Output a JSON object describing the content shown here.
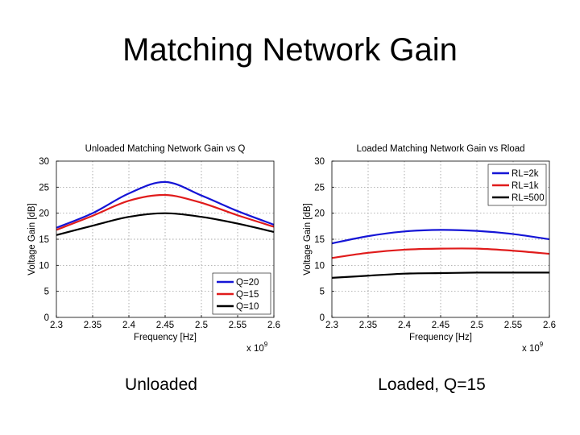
{
  "slide": {
    "title": "Matching Network Gain",
    "captions": [
      "Unloaded",
      "Loaded, Q=15"
    ]
  },
  "chart_data": [
    {
      "type": "line",
      "title": "Unloaded Matching Network Gain vs Q",
      "xlabel": "Frequency [Hz]",
      "ylabel": "Voltage Gain [dB]",
      "x_multiplier": "x 10^9",
      "xlim": [
        2.3,
        2.6
      ],
      "ylim": [
        0,
        30
      ],
      "xticks": [
        "2.3",
        "2.35",
        "2.4",
        "2.45",
        "2.5",
        "2.55",
        "2.6"
      ],
      "yticks": [
        "0",
        "5",
        "10",
        "15",
        "20",
        "25",
        "30"
      ],
      "grid": true,
      "legend": "bottom-right",
      "x": [
        2.3,
        2.35,
        2.4,
        2.45,
        2.5,
        2.55,
        2.6
      ],
      "series": [
        {
          "name": "Q=20",
          "color": "#1515d6",
          "values": [
            17.2,
            20.0,
            23.8,
            26.0,
            23.4,
            20.4,
            17.8
          ]
        },
        {
          "name": "Q=15",
          "color": "#e01b1b",
          "values": [
            16.8,
            19.5,
            22.4,
            23.5,
            22.0,
            19.6,
            17.4
          ]
        },
        {
          "name": "Q=10",
          "color": "#000000",
          "values": [
            15.8,
            17.6,
            19.3,
            20.0,
            19.3,
            18.0,
            16.4
          ]
        }
      ]
    },
    {
      "type": "line",
      "title": "Loaded Matching Network Gain vs Rload",
      "xlabel": "Frequency [Hz]",
      "ylabel": "Voltage Gain [dB]",
      "x_multiplier": "x 10^9",
      "xlim": [
        2.3,
        2.6
      ],
      "ylim": [
        0,
        30
      ],
      "xticks": [
        "2.3",
        "2.35",
        "2.4",
        "2.45",
        "2.5",
        "2.55",
        "2.6"
      ],
      "yticks": [
        "0",
        "5",
        "10",
        "15",
        "20",
        "25",
        "30"
      ],
      "grid": true,
      "legend": "top-right",
      "x": [
        2.3,
        2.35,
        2.4,
        2.45,
        2.5,
        2.55,
        2.6
      ],
      "series": [
        {
          "name": "RL=2k",
          "color": "#1515d6",
          "values": [
            14.2,
            15.6,
            16.5,
            16.8,
            16.6,
            16.0,
            15.0
          ]
        },
        {
          "name": "RL=1k",
          "color": "#e01b1b",
          "values": [
            11.4,
            12.4,
            13.0,
            13.2,
            13.2,
            12.8,
            12.2
          ]
        },
        {
          "name": "RL=500",
          "color": "#000000",
          "values": [
            7.6,
            8.0,
            8.4,
            8.5,
            8.6,
            8.6,
            8.6
          ]
        }
      ]
    }
  ]
}
